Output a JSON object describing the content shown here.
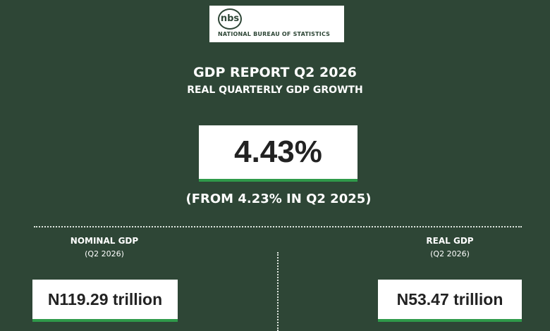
{
  "header": {
    "logo_mark": "nbs",
    "logo_text": "NATIONAL BUREAU OF STATISTICS"
  },
  "report": {
    "title": "GDP REPORT Q2 2026",
    "subtitle": "REAL QUARTERLY GDP GROWTH",
    "headline": "4.43%",
    "comparison": "(FROM 4.23% IN Q2 2025)"
  },
  "panels": [
    {
      "label": "NOMINAL GDP",
      "period": "(Q2 2026)",
      "value": "N119.29 trillion"
    },
    {
      "label": "REAL GDP",
      "period": "(Q2 2026)",
      "value": "N53.47 trillion"
    }
  ]
}
